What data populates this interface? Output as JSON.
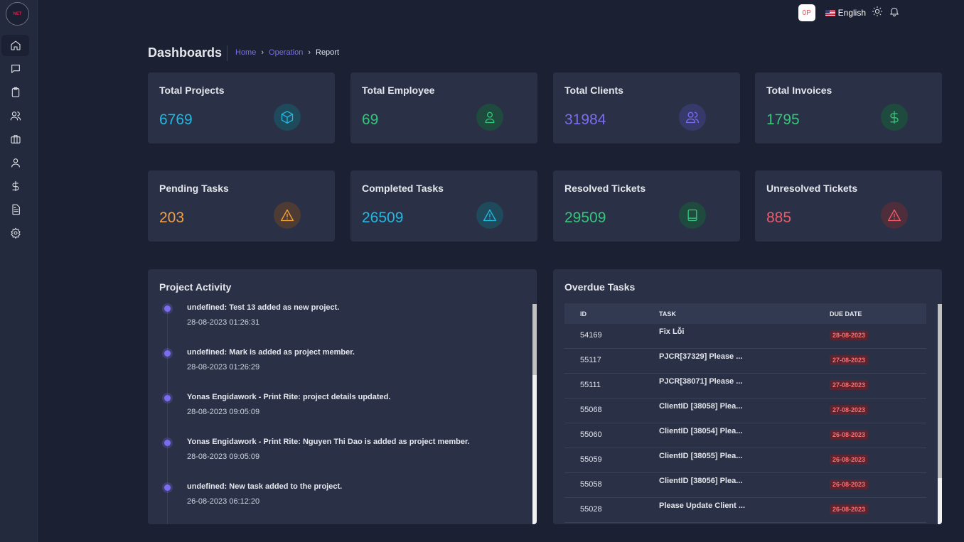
{
  "logo": {
    "text": "NET"
  },
  "sidebar": {
    "items": [
      {
        "name": "home",
        "active": true
      },
      {
        "name": "chat",
        "active": false
      },
      {
        "name": "clipboard",
        "active": false
      },
      {
        "name": "users",
        "active": false
      },
      {
        "name": "briefcase",
        "active": false
      },
      {
        "name": "user",
        "active": false
      },
      {
        "name": "dollar",
        "active": false
      },
      {
        "name": "document",
        "active": false
      },
      {
        "name": "settings",
        "active": false
      }
    ]
  },
  "topbar": {
    "avatar": "0P",
    "language": "English"
  },
  "header": {
    "title": "Dashboards",
    "breadcrumb": [
      "Home",
      "Operation",
      "Report"
    ]
  },
  "stats": [
    {
      "label": "Total Projects",
      "value": "6769",
      "color": "#22b8e0",
      "icon": "box-icon"
    },
    {
      "label": "Total Employee",
      "value": "69",
      "color": "#34c77b",
      "icon": "user-icon"
    },
    {
      "label": "Total Clients",
      "value": "31984",
      "color": "#7c6cf0",
      "icon": "users-icon"
    },
    {
      "label": "Total Invoices",
      "value": "1795",
      "color": "#34c77b",
      "icon": "dollar-icon"
    },
    {
      "label": "Pending Tasks",
      "value": "203",
      "color": "#f5a03a",
      "icon": "warning-icon"
    },
    {
      "label": "Completed Tasks",
      "value": "26509",
      "color": "#22b8e0",
      "icon": "warning-icon"
    },
    {
      "label": "Resolved Tickets",
      "value": "29509",
      "color": "#34c77b",
      "icon": "book-icon"
    },
    {
      "label": "Unresolved Tickets",
      "value": "885",
      "color": "#f05a6a",
      "icon": "warning-icon"
    }
  ],
  "activity": {
    "title": "Project Activity",
    "items": [
      {
        "text": "undefined: Test 13 added as new project.",
        "time": "28-08-2023 01:26:31"
      },
      {
        "text": "undefined: Mark is added as project member.",
        "time": "28-08-2023 01:26:29"
      },
      {
        "text": "Yonas Engidawork - Print Rite: project details updated.",
        "time": "28-08-2023 09:05:09"
      },
      {
        "text": "Yonas Engidawork - Print Rite: Nguyen Thi Dao is added as project member.",
        "time": "28-08-2023 09:05:09"
      },
      {
        "text": "undefined: New task added to the project.",
        "time": "26-08-2023 06:12:20"
      }
    ]
  },
  "overdue": {
    "title": "Overdue Tasks",
    "columns": [
      "ID",
      "TASK",
      "DUE DATE"
    ],
    "rows": [
      {
        "id": "54169",
        "task": "Fix Lỗi",
        "due": "28-08-2023"
      },
      {
        "id": "55117",
        "task": "PJCR[37329] Please ...",
        "due": "27-08-2023"
      },
      {
        "id": "55111",
        "task": "PJCR[38071] Please ...",
        "due": "27-08-2023"
      },
      {
        "id": "55068",
        "task": "ClientID [38058] Plea...",
        "due": "27-08-2023"
      },
      {
        "id": "55060",
        "task": "ClientID [38054] Plea...",
        "due": "26-08-2023"
      },
      {
        "id": "55059",
        "task": "ClientID [38055] Plea...",
        "due": "26-08-2023"
      },
      {
        "id": "55058",
        "task": "ClientID [38056] Plea...",
        "due": "26-08-2023"
      },
      {
        "id": "55028",
        "task": "Please Update Client ...",
        "due": "26-08-2023"
      }
    ]
  }
}
